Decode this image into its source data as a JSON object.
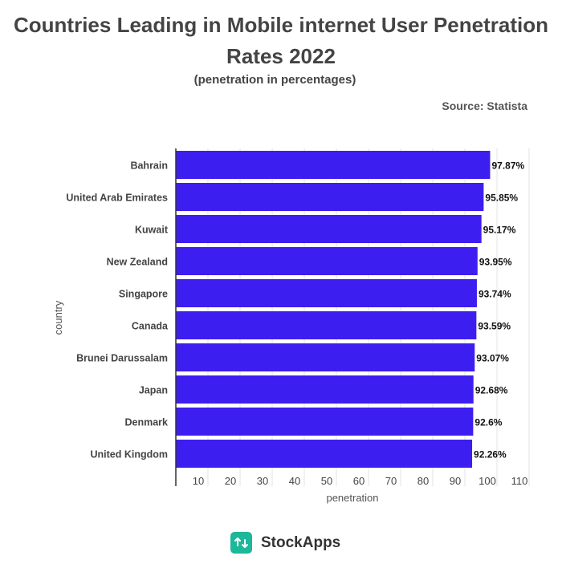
{
  "header": {
    "title_line1": "Countries Leading in Mobile internet User Penetration",
    "title_line2": "Rates 2022",
    "subtitle": "(penetration in percentages)",
    "source": "Source: Statista"
  },
  "chart_data": {
    "type": "bar",
    "orientation": "horizontal",
    "categories": [
      "Bahrain",
      "United Arab Emirates",
      "Kuwait",
      "New Zealand",
      "Singapore",
      "Canada",
      "Brunei Darussalam",
      "Japan",
      "Denmark",
      "United Kingdom"
    ],
    "values": [
      97.87,
      95.85,
      95.17,
      93.95,
      93.74,
      93.59,
      93.07,
      92.68,
      92.6,
      92.26
    ],
    "value_labels": [
      "97.87%",
      "95.85%",
      "95.17%",
      "93.95%",
      "93.74%",
      "93.59%",
      "93.07%",
      "92.68%",
      "92.6%",
      "92.26%"
    ],
    "xlabel": "penetration",
    "ylabel": "country",
    "xlim": [
      0,
      110
    ],
    "xticks": [
      10,
      20,
      30,
      40,
      50,
      60,
      70,
      80,
      90,
      100,
      110
    ],
    "grid": true,
    "bar_color": "#3c1ef0"
  },
  "footer": {
    "brand": "StockApps",
    "logo_color": "#1bb89a",
    "logo_icon": "arrows-updown-icon"
  }
}
